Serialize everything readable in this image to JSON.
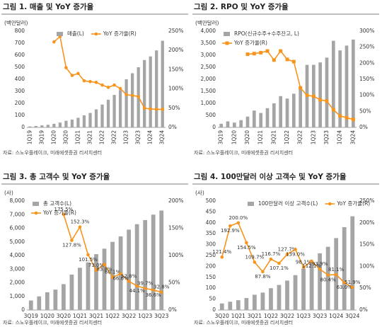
{
  "chart_data": [
    {
      "type": "bar",
      "title": "그림 1. 매출 및 YoY 증가율",
      "y_label": "(백만달러)",
      "source": "자료: 스노우플레이크, 미래에셋증권 리서치센터",
      "categories": [
        "1Q19",
        null,
        "3Q19",
        null,
        "1Q20",
        null,
        "3Q20",
        null,
        "1Q21",
        null,
        "3Q21",
        null,
        "1Q22",
        null,
        "3Q22",
        null,
        "1Q23",
        null,
        "3Q23",
        null,
        "1Q24",
        null,
        "3Q24"
      ],
      "x_rotated": true,
      "legend": "upper center",
      "grid": false,
      "ylim": [
        0,
        800
      ],
      "yticks": [
        0,
        100,
        200,
        300,
        400,
        500,
        600,
        700,
        800
      ],
      "y2lim": [
        0,
        250
      ],
      "y2ticks": [
        {
          "value": 0,
          "label": "0%"
        },
        {
          "value": 50,
          "label": "50%"
        },
        {
          "value": 100,
          "label": "100%"
        },
        {
          "value": 150,
          "label": "150%"
        },
        {
          "value": 200,
          "label": "200%"
        },
        {
          "value": 250,
          "label": "250%"
        }
      ],
      "series": [
        {
          "name": "매출(L)",
          "type": "bar",
          "color": "#a5a5a5",
          "values": [
            8,
            12,
            17,
            22,
            30,
            40,
            55,
            65,
            80,
            100,
            120,
            150,
            190,
            230,
            270,
            310,
            400,
            450,
            500,
            560,
            590,
            640,
            720
          ]
        },
        {
          "name": "YoY 증가율(R)",
          "type": "line",
          "axis": "y2",
          "marker": "o",
          "color": "#f7941d",
          "values": [
            null,
            null,
            null,
            null,
            222,
            236,
            155,
            135,
            140,
            121,
            119,
            117,
            110,
            104,
            110,
            101,
            85,
            83,
            80,
            50,
            48,
            47,
            47
          ]
        }
      ]
    },
    {
      "type": "bar",
      "title": "그림 2. RPO 및 YoY 증가율",
      "y_label": "(백만달러)",
      "source": "자료: 스노우플레이크, 미래에셋증권 리서치센터",
      "categories": [
        "3Q19",
        null,
        "1Q20",
        null,
        "3Q20",
        null,
        "1Q21",
        null,
        "3Q21",
        null,
        "1Q22",
        null,
        "3Q22",
        null,
        "1Q23",
        null,
        "3Q23",
        null,
        "1Q24",
        null,
        "3Q24"
      ],
      "x_rotated": true,
      "legend": "upper left",
      "grid": false,
      "ylim": [
        0,
        4000
      ],
      "yticks": [
        0,
        500,
        {
          "value": 1000,
          "label": "1,000"
        },
        {
          "value": 1500,
          "label": "1,500"
        },
        {
          "value": 2000,
          "label": "2,000"
        },
        {
          "value": 2500,
          "label": "2,500"
        },
        {
          "value": 3000,
          "label": "3,000"
        },
        {
          "value": 3500,
          "label": "3,500"
        },
        {
          "value": 4000,
          "label": "4,000"
        }
      ],
      "y2lim": [
        0,
        300
      ],
      "y2ticks": [
        {
          "value": 0,
          "label": "0%"
        },
        {
          "value": 50,
          "label": "50%"
        },
        {
          "value": 100,
          "label": "100%"
        },
        {
          "value": 150,
          "label": "150%"
        },
        {
          "value": 200,
          "label": "200%"
        },
        {
          "value": 250,
          "label": "250%"
        },
        {
          "value": 300,
          "label": "300%"
        }
      ],
      "series": [
        {
          "name": "RPO(신규수주+수주잔고, L)",
          "type": "bar",
          "color": "#a5a5a5",
          "values": [
            150,
            250,
            200,
            300,
            450,
            700,
            600,
            800,
            1000,
            1300,
            1200,
            1400,
            1600,
            2600,
            2600,
            2700,
            2900,
            3600,
            3200,
            3400,
            3650
          ]
        },
        {
          "name": "YoY 증가율(R)",
          "type": "line",
          "axis": "y2",
          "marker": "s",
          "color": "#f7941d",
          "values": [
            null,
            null,
            null,
            null,
            228,
            230,
            233,
            238,
            210,
            238,
            212,
            205,
            123,
            100,
            97,
            86,
            82,
            55,
            36,
            30,
            25
          ]
        }
      ]
    },
    {
      "type": "bar",
      "title": "그림 3. 총 고객수 및 YoY 증가율",
      "y_label": "(사)",
      "source": "자료: 스노우플레이크, 미래에셋증권 리서치센터",
      "categories": [
        "3Q19",
        null,
        "1Q20",
        null,
        "3Q20",
        null,
        "1Q21",
        null,
        "3Q21",
        null,
        "1Q22",
        null,
        "3Q22",
        null,
        "1Q23",
        null,
        "3Q23"
      ],
      "x_rotated": false,
      "legend": "upper left",
      "grid": false,
      "ylim": [
        0,
        8000
      ],
      "yticks": [
        0,
        {
          "value": 1000,
          "label": "1,000"
        },
        {
          "value": 2000,
          "label": "2,000"
        },
        {
          "value": 3000,
          "label": "3,000"
        },
        {
          "value": 4000,
          "label": "4,000"
        },
        {
          "value": 5000,
          "label": "5,000"
        },
        {
          "value": 6000,
          "label": "6,000"
        },
        {
          "value": 7000,
          "label": "7,000"
        },
        {
          "value": 8000,
          "label": "8,000"
        }
      ],
      "y2lim": [
        0,
        200
      ],
      "y2ticks": [
        {
          "value": 0,
          "label": "0%"
        },
        {
          "value": 50,
          "label": "50%"
        },
        {
          "value": 100,
          "label": "100%"
        },
        {
          "value": 150,
          "label": "150%"
        },
        {
          "value": 200,
          "label": "200%"
        }
      ],
      "series": [
        {
          "name": "총 고객수(L)",
          "type": "bar",
          "color": "#a5a5a5",
          "values": [
            700,
            1000,
            1300,
            1500,
            1900,
            2600,
            3100,
            3500,
            4100,
            4500,
            5000,
            5400,
            5900,
            6300,
            6600,
            7000,
            7300
          ]
        },
        {
          "name": "YoY 증가율(R)",
          "type": "line",
          "axis": "y2",
          "marker": "o",
          "color": "#f7941d",
          "values": [
            null,
            null,
            null,
            null,
            175.5,
            127.8,
            152.3,
            101.5,
            73.0,
            83.8,
            60.1,
            66.6,
            52.8,
            44.1,
            39.7,
            36.6,
            32.8
          ],
          "value_labels": [
            null,
            null,
            null,
            null,
            "175.5%",
            "127.8%",
            "152.3%",
            "101.5%",
            "73.0%",
            "83.8%",
            "60.1%",
            "66.6%",
            "52.8%",
            "44.1%",
            "39.7%",
            "36.6%",
            "32.8%"
          ]
        }
      ]
    },
    {
      "type": "bar",
      "title": "그림 4. 100만달러 이상 고객수 및 YoY 증가율",
      "y_label": "(사)",
      "source": "자료: 스노우플레이크, 미래에셋증권 리서치센터",
      "categories": [
        "3Q20",
        null,
        "1Q21",
        null,
        "3Q21",
        null,
        "1Q22",
        null,
        "3Q22",
        null,
        "1Q23",
        null,
        "3Q23",
        null,
        "1Q24",
        null,
        "3Q24"
      ],
      "x_rotated": false,
      "legend": "upper center",
      "grid": false,
      "ylim": [
        0,
        500
      ],
      "yticks": [
        0,
        50,
        100,
        150,
        200,
        250,
        300,
        350,
        400,
        450,
        500
      ],
      "y2lim": [
        0,
        250
      ],
      "y2ticks": [
        {
          "value": 0,
          "label": "0%"
        },
        {
          "value": 50,
          "label": "50%"
        },
        {
          "value": 100,
          "label": "100%"
        },
        {
          "value": 150,
          "label": "150%"
        },
        {
          "value": 200,
          "label": "200%"
        },
        {
          "value": 250,
          "label": "250%"
        }
      ],
      "series": [
        {
          "name": "100만달러 이상 고객수(L)",
          "type": "bar",
          "color": "#a5a5a5",
          "values": [
            30,
            38,
            45,
            55,
            70,
            80,
            100,
            115,
            135,
            160,
            190,
            220,
            260,
            290,
            330,
            380,
            430
          ]
        },
        {
          "name": "YoY 증가율(R)",
          "type": "line",
          "axis": "y2",
          "marker": "o",
          "color": "#f7941d",
          "values": [
            121.4,
            192.9,
            200.0,
            154.5,
            109.7,
            87.8,
            116.7,
            107.1,
            127.7,
            139.0,
            98.1,
            112.1,
            93.9,
            80.4,
            81.1,
            63.0,
            51.9
          ],
          "value_labels": [
            "121.4%",
            "192.9%",
            "200.0%",
            "154.5%",
            "109.7%",
            "87.8%",
            "116.7%",
            "107.1%",
            "127.7%",
            "139.0%",
            "98.1%",
            "112.1%",
            "93.9%",
            "80.4%",
            "81.1%",
            "63.0%",
            "51.9%"
          ]
        }
      ]
    }
  ]
}
